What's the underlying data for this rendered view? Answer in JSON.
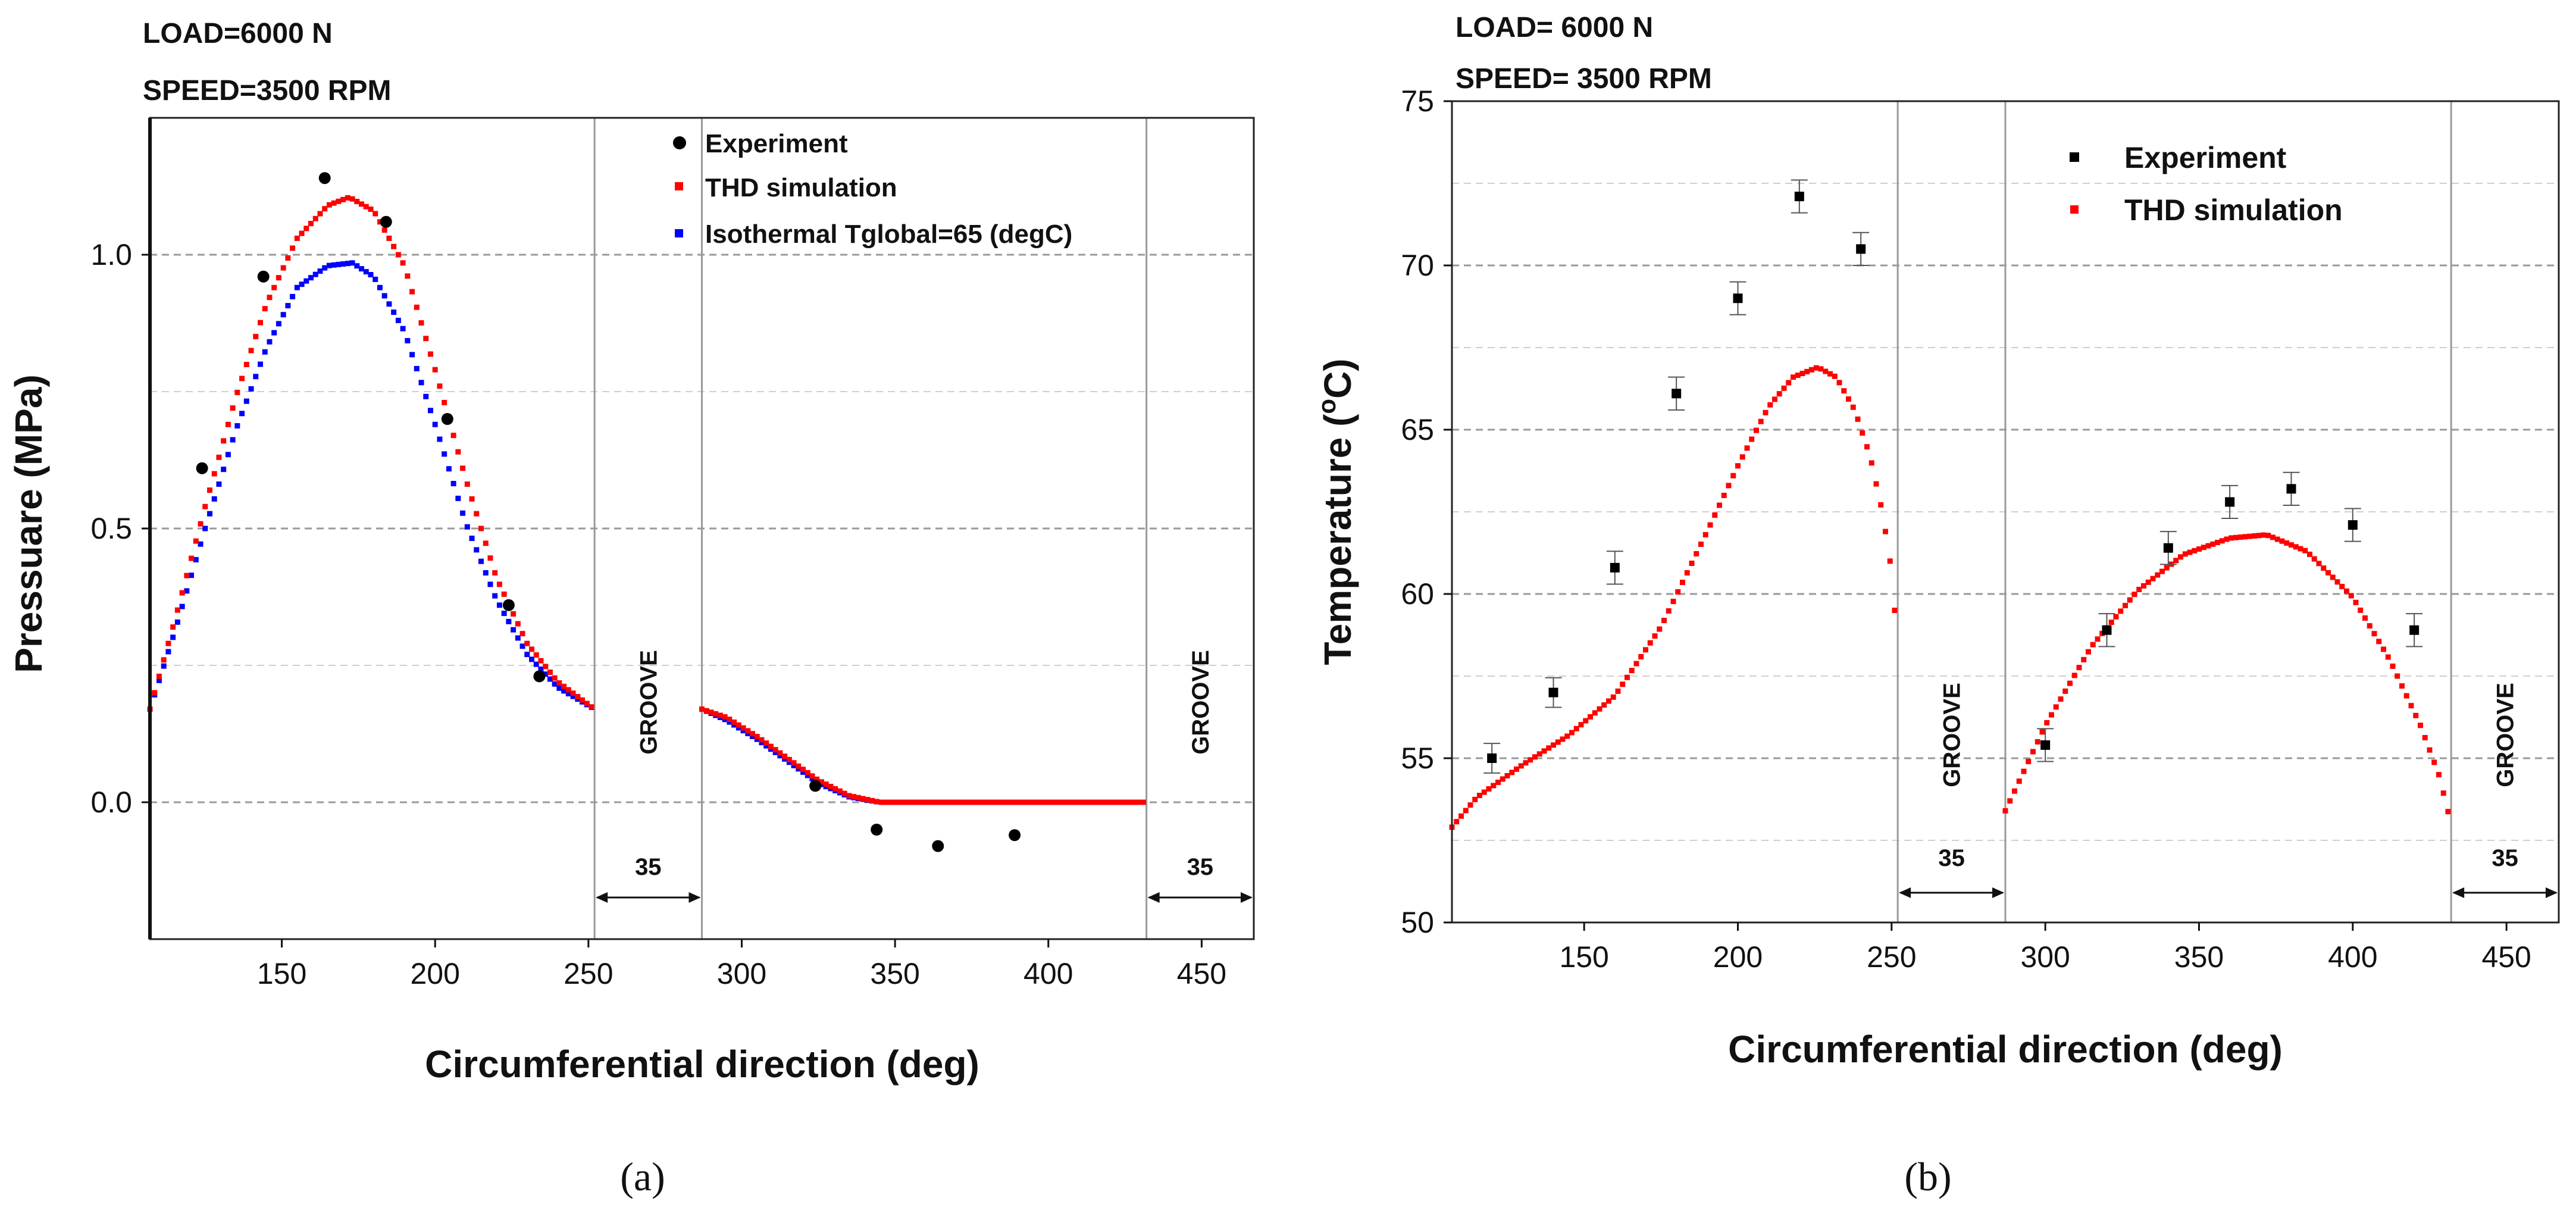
{
  "chart_data": [
    {
      "id": "a",
      "type": "scatter",
      "caption": "(a)",
      "title_lines": [
        "LOAD=6000 N",
        "SPEED=3500 RPM"
      ],
      "xlabel": "Circumferential direction (deg)",
      "ylabel": "Pressuare (MPa)",
      "xlim": [
        107,
        467
      ],
      "ylim": [
        -0.25,
        1.25
      ],
      "xticks": [
        150,
        200,
        250,
        300,
        350,
        400,
        450
      ],
      "yticks": [
        0.0,
        0.5,
        1.0
      ],
      "ytick_labels": [
        "0.0",
        "0.5",
        "1.0"
      ],
      "grid": "horizontal-dashed",
      "legend_position": "top-right",
      "legend": [
        "Experiment",
        "THD simulation",
        "Isothermal Tglobal=65 (degC)"
      ],
      "colors": {
        "Experiment": "#000000",
        "THD simulation": "#ff0000",
        "Isothermal": "#0000ff"
      },
      "grooves": [
        {
          "x_start": 252,
          "x_end": 287,
          "label": "GROOVE",
          "width_label": "35"
        },
        {
          "x_start": 432,
          "x_end": 467,
          "label": "GROOVE",
          "width_label": "35"
        }
      ],
      "experiment": [
        [
          124,
          0.61
        ],
        [
          144,
          0.96
        ],
        [
          164,
          1.14
        ],
        [
          184,
          1.06
        ],
        [
          204,
          0.7
        ],
        [
          224,
          0.36
        ],
        [
          234,
          0.23
        ],
        [
          324,
          0.03
        ],
        [
          344,
          -0.05
        ],
        [
          364,
          -0.08
        ],
        [
          389,
          -0.06
        ]
      ],
      "thd_segments": [
        {
          "x": [
            107,
            115,
            125,
            135,
            145,
            155,
            165,
            172,
            180,
            190,
            200,
            210,
            220,
            230,
            240,
            252
          ],
          "y": [
            0.17,
            0.33,
            0.54,
            0.74,
            0.91,
            1.03,
            1.09,
            1.105,
            1.08,
            0.98,
            0.79,
            0.59,
            0.41,
            0.29,
            0.22,
            0.17
          ]
        },
        {
          "x": [
            287,
            295,
            305,
            315,
            325,
            335,
            345,
            355,
            432
          ],
          "y": [
            0.17,
            0.155,
            0.12,
            0.08,
            0.04,
            0.012,
            0.0,
            0.0,
            0.0
          ]
        }
      ],
      "isothermal_segments": [
        {
          "x": [
            107,
            115,
            125,
            135,
            145,
            155,
            165,
            173,
            180,
            190,
            200,
            210,
            220,
            230,
            240,
            252
          ],
          "y": [
            0.17,
            0.31,
            0.5,
            0.68,
            0.83,
            0.94,
            0.98,
            0.985,
            0.96,
            0.86,
            0.69,
            0.51,
            0.37,
            0.27,
            0.21,
            0.17
          ]
        },
        {
          "x": [
            287,
            295,
            305,
            315,
            325,
            335,
            345,
            355,
            432
          ],
          "y": [
            0.17,
            0.15,
            0.115,
            0.075,
            0.035,
            0.01,
            0.0,
            0.0,
            0.0
          ]
        }
      ]
    },
    {
      "id": "b",
      "type": "scatter",
      "caption": "(b)",
      "title_lines": [
        "LOAD=  6000 N",
        "SPEED= 3500 RPM"
      ],
      "xlabel": "Circumferential direction (deg)",
      "ylabel_main": "Temperature (",
      "ylabel_sup": "o",
      "ylabel_end": "C)",
      "xlim": [
        107,
        467
      ],
      "ylim": [
        50,
        75
      ],
      "xticks": [
        150,
        200,
        250,
        300,
        350,
        400,
        450
      ],
      "yticks": [
        50,
        55,
        60,
        65,
        70,
        75
      ],
      "ytick_labels": [
        "50",
        "55",
        "60",
        "65",
        "70",
        "75"
      ],
      "grid": "horizontal-dashed",
      "legend_position": "top-right",
      "legend": [
        "Experiment",
        "THD simulation"
      ],
      "colors": {
        "Experiment": "#000000",
        "THD simulation": "#ff0000"
      },
      "grooves": [
        {
          "x_start": 252,
          "x_end": 287,
          "label": "GROOVE",
          "width_label": "35"
        },
        {
          "x_start": 432,
          "x_end": 467,
          "label": "GROOVE",
          "width_label": "35"
        }
      ],
      "experiment": [
        [
          120,
          55.0,
          0.45
        ],
        [
          140,
          57.0,
          0.45
        ],
        [
          160,
          60.8,
          0.5
        ],
        [
          180,
          66.1,
          0.5
        ],
        [
          200,
          69.0,
          0.5
        ],
        [
          220,
          72.1,
          0.5
        ],
        [
          240,
          70.5,
          0.5
        ],
        [
          300,
          55.4,
          0.5
        ],
        [
          320,
          58.9,
          0.5
        ],
        [
          340,
          61.4,
          0.5
        ],
        [
          360,
          62.8,
          0.5
        ],
        [
          380,
          63.2,
          0.5
        ],
        [
          400,
          62.1,
          0.5
        ],
        [
          420,
          58.9,
          0.5
        ]
      ],
      "thd_segments": [
        {
          "x": [
            107,
            115,
            130,
            145,
            160,
            175,
            190,
            200,
            210,
            218,
            226,
            232,
            238,
            243,
            247,
            250,
            252
          ],
          "y": [
            52.9,
            53.8,
            54.8,
            55.7,
            56.9,
            59.0,
            61.9,
            63.9,
            65.7,
            66.6,
            66.9,
            66.6,
            65.6,
            64.2,
            62.5,
            60.7,
            58.3
          ]
        },
        {
          "x": [
            287,
            300,
            315,
            330,
            345,
            360,
            372,
            385,
            400,
            412,
            422,
            428,
            432
          ],
          "y": [
            53.4,
            56.0,
            58.4,
            60.1,
            61.2,
            61.7,
            61.8,
            61.3,
            59.9,
            58.0,
            56.0,
            54.5,
            53.0
          ]
        }
      ]
    }
  ]
}
